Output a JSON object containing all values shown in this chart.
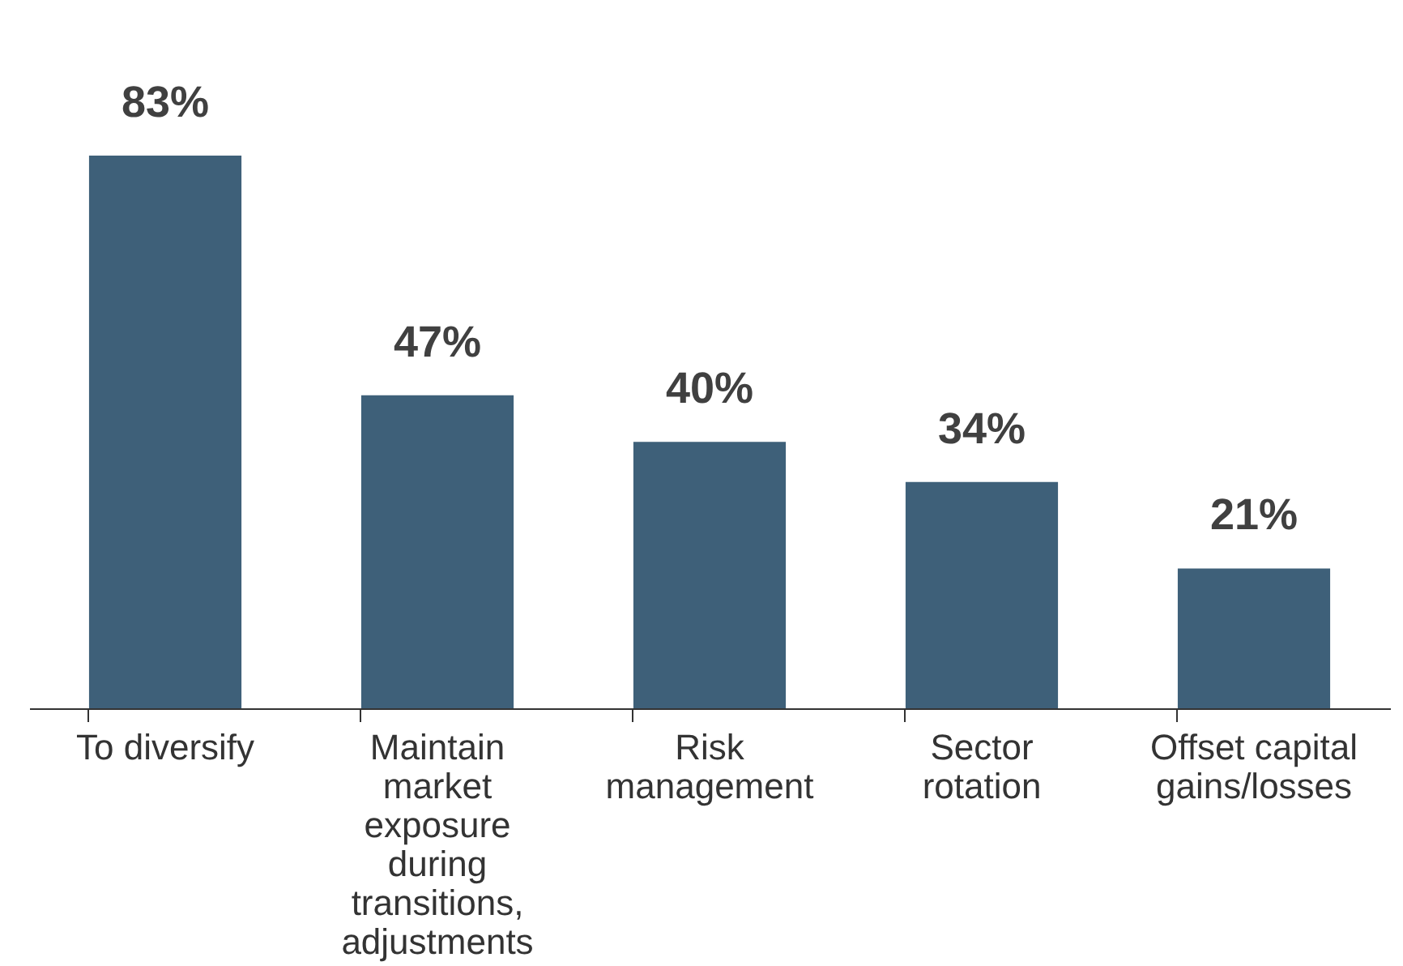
{
  "chart_data": {
    "type": "bar",
    "categories": [
      "To diversify",
      "Maintain market exposure during transitions, adjustments",
      "Risk management",
      "Sector rotation",
      "Offset capital gains/losses"
    ],
    "values": [
      83,
      47,
      40,
      34,
      21
    ],
    "value_labels": [
      "83%",
      "47%",
      "40%",
      "34%",
      "21%"
    ],
    "color": "#3e6079"
  }
}
